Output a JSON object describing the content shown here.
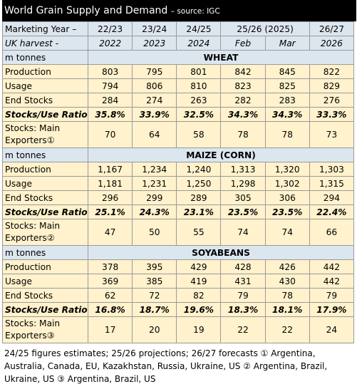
{
  "title": "World Grain Supply and Demand",
  "source": "– source: IGC",
  "header": {
    "row1": [
      "Marketing Year –",
      "22/23",
      "23/24",
      "24/25",
      "25/26 (2025)",
      "26/27"
    ],
    "row2": [
      "UK harvest -",
      "2022",
      "2023",
      "2024",
      "Feb",
      "Mar",
      "2026"
    ]
  },
  "sections": [
    {
      "unit": "m tonnes",
      "name": "WHEAT",
      "rows": [
        [
          "Production",
          "803",
          "795",
          "801",
          "842",
          "845",
          "822"
        ],
        [
          "Usage",
          "794",
          "806",
          "810",
          "823",
          "825",
          "829"
        ],
        [
          "End Stocks",
          "284",
          "274",
          "263",
          "282",
          "283",
          "276"
        ],
        [
          "Stocks/Use Ratio",
          "35.8%",
          "33.9%",
          "32.5%",
          "34.3%",
          "34.3%",
          "33.3%"
        ],
        [
          "Stocks: Main Exporters①",
          "70",
          "64",
          "58",
          "78",
          "78",
          "73"
        ]
      ]
    },
    {
      "unit": "m tonnes",
      "name": "MAIZE (CORN)",
      "rows": [
        [
          "Production",
          "1,167",
          "1,234",
          "1,240",
          "1,313",
          "1,320",
          "1,303"
        ],
        [
          "Usage",
          "1,181",
          "1,231",
          "1,250",
          "1,298",
          "1,302",
          "1,315"
        ],
        [
          "End Stocks",
          "296",
          "299",
          "289",
          "305",
          "306",
          "294"
        ],
        [
          "Stocks/Use Ratio",
          "25.1%",
          "24.3%",
          "23.1%",
          "23.5%",
          "23.5%",
          "22.4%"
        ],
        [
          "Stocks: Main Exporters②",
          "47",
          "50",
          "55",
          "74",
          "74",
          "66"
        ]
      ]
    },
    {
      "unit": "m tonnes",
      "name": "SOYABEANS",
      "rows": [
        [
          "Production",
          "378",
          "395",
          "429",
          "428",
          "426",
          "442"
        ],
        [
          "Usage",
          "369",
          "385",
          "419",
          "431",
          "430",
          "442"
        ],
        [
          "End Stocks",
          "62",
          "72",
          "82",
          "79",
          "78",
          "79"
        ],
        [
          "Stocks/Use Ratio",
          "16.8%",
          "18.7%",
          "19.6%",
          "18.3%",
          "18.1%",
          "17.9%"
        ],
        [
          "Stocks: Main Exporters③",
          "17",
          "20",
          "19",
          "22",
          "22",
          "24"
        ]
      ]
    }
  ],
  "footnote": "24/25 figures estimates; 25/26 projections; 26/27 forecasts  ① Argentina, Australia, Canada, EU, Kazakhstan, Russia, Ukraine, US   ② Argentina, Brazil, Ukraine, US   ③ Argentina, Brazil, US"
}
